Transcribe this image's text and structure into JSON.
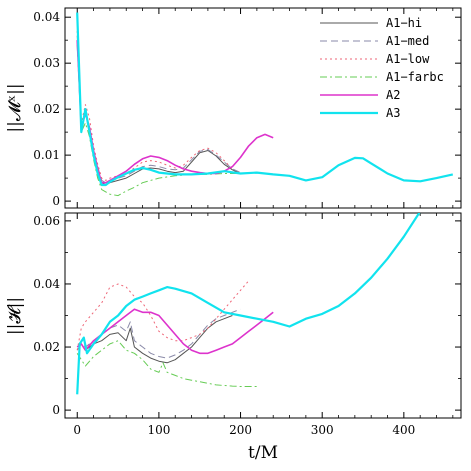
{
  "chart_data": [
    {
      "type": "line",
      "ylabel": "||𝓜ˣ||",
      "xlim": [
        -15,
        470
      ],
      "ylim": [
        -0.0015,
        0.042
      ],
      "yticks": [
        0,
        0.01,
        0.02,
        0.03,
        0.04
      ],
      "ytick_labels": [
        "0",
        "0.01",
        "0.02",
        "0.03",
        "0.04"
      ],
      "xticks": [
        0,
        100,
        200,
        300,
        400
      ],
      "legend_position": "top-right",
      "series": [
        {
          "name": "A1−hi",
          "color": "#555555",
          "dash": "",
          "x": [
            0,
            5,
            10,
            15,
            20,
            25,
            30,
            35,
            40,
            50,
            60,
            70,
            80,
            90,
            100,
            110,
            120,
            130,
            140,
            150,
            160,
            170,
            180,
            190,
            200
          ],
          "y": [
            0.035,
            0.016,
            0.019,
            0.016,
            0.011,
            0.007,
            0.004,
            0.0035,
            0.004,
            0.0045,
            0.005,
            0.006,
            0.007,
            0.0072,
            0.007,
            0.0065,
            0.0062,
            0.0065,
            0.0085,
            0.0105,
            0.011,
            0.0098,
            0.008,
            0.0068,
            0.006
          ]
        },
        {
          "name": "A1−med",
          "color": "#8a8aa8",
          "dash": "7,4",
          "x": [
            0,
            5,
            10,
            15,
            20,
            25,
            30,
            35,
            40,
            50,
            60,
            70,
            80,
            90,
            100,
            110,
            120,
            130,
            140,
            150,
            160,
            170,
            180,
            190,
            200
          ],
          "y": [
            0.036,
            0.016,
            0.0195,
            0.016,
            0.011,
            0.0075,
            0.0045,
            0.004,
            0.0045,
            0.005,
            0.0055,
            0.0065,
            0.0075,
            0.0078,
            0.0075,
            0.007,
            0.0068,
            0.0072,
            0.009,
            0.0108,
            0.0112,
            0.01,
            0.0085,
            0.007,
            0.0062
          ]
        },
        {
          "name": "A1−low",
          "color": "#ee6677",
          "dash": "2,3",
          "x": [
            0,
            5,
            10,
            15,
            20,
            25,
            30,
            35,
            40,
            50,
            60,
            70,
            80,
            90,
            100,
            110,
            120,
            130,
            140,
            150,
            160,
            170,
            180,
            190
          ],
          "y": [
            0.037,
            0.017,
            0.021,
            0.018,
            0.012,
            0.008,
            0.005,
            0.0045,
            0.005,
            0.0055,
            0.006,
            0.0072,
            0.0085,
            0.0088,
            0.0085,
            0.0078,
            0.0072,
            0.0078,
            0.0095,
            0.011,
            0.0115,
            0.0105,
            0.0088,
            0.007
          ]
        },
        {
          "name": "A1−farbc",
          "color": "#66cc55",
          "dash": "7,3,2,3",
          "x": [
            0,
            5,
            10,
            15,
            20,
            25,
            30,
            35,
            40,
            50,
            60,
            70,
            80,
            100,
            120,
            140,
            160,
            180,
            200
          ],
          "y": [
            0.034,
            0.015,
            0.017,
            0.014,
            0.009,
            0.005,
            0.0025,
            0.002,
            0.0015,
            0.0012,
            0.0022,
            0.003,
            0.004,
            0.005,
            0.0055,
            0.0058,
            0.0058,
            0.006,
            0.006
          ]
        },
        {
          "name": "A2",
          "color": "#dd33cc",
          "dash": "",
          "x": [
            0,
            5,
            10,
            15,
            20,
            25,
            30,
            35,
            40,
            50,
            60,
            70,
            80,
            90,
            100,
            110,
            120,
            130,
            140,
            150,
            160,
            170,
            180,
            190,
            200,
            210,
            220,
            230,
            240
          ],
          "y": [
            0.035,
            0.016,
            0.019,
            0.016,
            0.011,
            0.007,
            0.004,
            0.004,
            0.0045,
            0.0055,
            0.0065,
            0.008,
            0.0092,
            0.0098,
            0.0095,
            0.0088,
            0.0078,
            0.007,
            0.0065,
            0.0062,
            0.006,
            0.006,
            0.0065,
            0.0075,
            0.0095,
            0.012,
            0.0138,
            0.0145,
            0.0138
          ]
        },
        {
          "name": "A3",
          "color": "#11e3ee",
          "dash": "",
          "x": [
            0,
            5,
            10,
            15,
            20,
            25,
            30,
            35,
            40,
            50,
            60,
            70,
            80,
            90,
            100,
            110,
            120,
            140,
            160,
            180,
            200,
            220,
            240,
            260,
            280,
            300,
            320,
            340,
            350,
            360,
            380,
            400,
            420,
            440,
            460
          ],
          "y": [
            0.041,
            0.015,
            0.02,
            0.015,
            0.01,
            0.006,
            0.0035,
            0.0035,
            0.0042,
            0.0052,
            0.006,
            0.0068,
            0.0072,
            0.0068,
            0.0062,
            0.006,
            0.0058,
            0.0058,
            0.006,
            0.0065,
            0.006,
            0.0062,
            0.0058,
            0.0055,
            0.0045,
            0.0052,
            0.0078,
            0.0094,
            0.0093,
            0.0082,
            0.006,
            0.0045,
            0.0043,
            0.005,
            0.0058
          ]
        }
      ]
    },
    {
      "type": "line",
      "xlabel": "t/M",
      "ylabel": "||𝓗||",
      "xlim": [
        -15,
        470
      ],
      "ylim": [
        -0.0025,
        0.0625
      ],
      "yticks": [
        0,
        0.02,
        0.04,
        0.06
      ],
      "ytick_labels": [
        "0",
        "0.02",
        "0.04",
        "0.06"
      ],
      "xticks": [
        0,
        100,
        200,
        300,
        400
      ],
      "xtick_labels": [
        "0",
        "100",
        "200",
        "300",
        "400"
      ],
      "series": [
        {
          "name": "A1−hi",
          "color": "#555555",
          "dash": "",
          "x": [
            0,
            5,
            10,
            20,
            30,
            40,
            50,
            60,
            65,
            70,
            75,
            80,
            90,
            100,
            110,
            120,
            130,
            140,
            150,
            160,
            170,
            180,
            190
          ],
          "y": [
            0.02,
            0.021,
            0.019,
            0.021,
            0.022,
            0.024,
            0.0245,
            0.022,
            0.026,
            0.02,
            0.019,
            0.018,
            0.0165,
            0.0155,
            0.015,
            0.016,
            0.018,
            0.02,
            0.023,
            0.026,
            0.028,
            0.029,
            0.03
          ]
        },
        {
          "name": "A1−med",
          "color": "#8a8aa8",
          "dash": "7,4",
          "x": [
            0,
            5,
            10,
            20,
            30,
            40,
            50,
            60,
            65,
            70,
            75,
            80,
            90,
            100,
            110,
            120,
            130,
            140,
            150,
            160,
            170,
            180,
            190,
            200
          ],
          "y": [
            0.019,
            0.021,
            0.02,
            0.022,
            0.024,
            0.026,
            0.027,
            0.025,
            0.028,
            0.022,
            0.021,
            0.02,
            0.018,
            0.017,
            0.0165,
            0.0175,
            0.019,
            0.021,
            0.024,
            0.027,
            0.029,
            0.03,
            0.031,
            0.032
          ]
        },
        {
          "name": "A1−low",
          "color": "#ee6677",
          "dash": "2,3",
          "x": [
            0,
            5,
            10,
            20,
            30,
            40,
            50,
            60,
            70,
            80,
            90,
            100,
            110,
            120,
            130,
            140,
            150,
            160,
            170,
            180,
            190,
            200,
            210
          ],
          "y": [
            0.019,
            0.026,
            0.028,
            0.031,
            0.034,
            0.039,
            0.04,
            0.039,
            0.036,
            0.034,
            0.03,
            0.025,
            0.023,
            0.022,
            0.022,
            0.023,
            0.024,
            0.026,
            0.029,
            0.032,
            0.035,
            0.038,
            0.041
          ]
        },
        {
          "name": "A1−farbc",
          "color": "#66cc55",
          "dash": "7,3,2,3",
          "x": [
            0,
            5,
            10,
            20,
            30,
            40,
            50,
            60,
            70,
            80,
            90,
            100,
            105,
            110,
            120,
            130,
            140,
            150,
            160,
            170,
            180,
            190,
            200,
            210,
            220
          ],
          "y": [
            0.018,
            0.016,
            0.014,
            0.017,
            0.019,
            0.021,
            0.022,
            0.019,
            0.018,
            0.016,
            0.013,
            0.012,
            0.015,
            0.012,
            0.011,
            0.01,
            0.0095,
            0.009,
            0.0085,
            0.008,
            0.0078,
            0.0076,
            0.0075,
            0.0075,
            0.0075
          ]
        },
        {
          "name": "A2",
          "color": "#dd33cc",
          "dash": "",
          "x": [
            0,
            5,
            10,
            20,
            30,
            40,
            50,
            60,
            70,
            80,
            90,
            100,
            110,
            120,
            130,
            140,
            150,
            160,
            170,
            180,
            190,
            200,
            210,
            220,
            230,
            240
          ],
          "y": [
            0.02,
            0.021,
            0.019,
            0.022,
            0.024,
            0.026,
            0.028,
            0.03,
            0.032,
            0.031,
            0.031,
            0.03,
            0.027,
            0.024,
            0.021,
            0.019,
            0.018,
            0.018,
            0.019,
            0.02,
            0.021,
            0.023,
            0.025,
            0.027,
            0.029,
            0.031
          ]
        },
        {
          "name": "A3",
          "color": "#11e3ee",
          "dash": "",
          "x": [
            0,
            3,
            8,
            12,
            20,
            30,
            40,
            50,
            60,
            70,
            80,
            90,
            100,
            110,
            120,
            140,
            160,
            180,
            200,
            220,
            240,
            260,
            280,
            300,
            320,
            340,
            360,
            380,
            400,
            420
          ],
          "y": [
            0.005,
            0.021,
            0.023,
            0.018,
            0.021,
            0.024,
            0.028,
            0.03,
            0.033,
            0.035,
            0.036,
            0.037,
            0.038,
            0.039,
            0.0385,
            0.037,
            0.034,
            0.031,
            0.03,
            0.029,
            0.028,
            0.0265,
            0.029,
            0.0305,
            0.033,
            0.037,
            0.042,
            0.048,
            0.055,
            0.063
          ]
        }
      ]
    }
  ]
}
